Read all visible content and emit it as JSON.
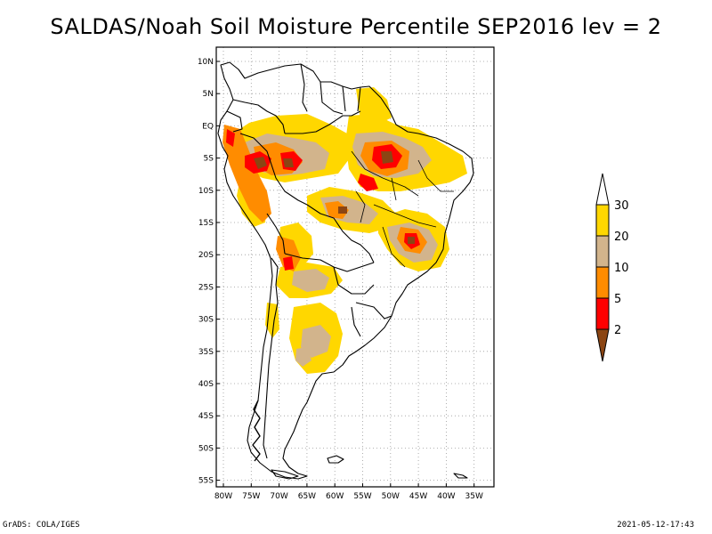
{
  "title": "SALDAS/Noah Soil Moisture Percentile SEP2016 lev = 2",
  "footer": {
    "left": "GrADS: COLA/IGES",
    "right": "2021-05-12-17:43"
  },
  "map": {
    "lat_labels": [
      "10N",
      "5N",
      "EQ",
      "5S",
      "10S",
      "15S",
      "20S",
      "25S",
      "30S",
      "35S",
      "40S",
      "45S",
      "50S",
      "55S"
    ],
    "lon_labels": [
      "80W",
      "75W",
      "70W",
      "65W",
      "60W",
      "55W",
      "50W",
      "45W",
      "40W",
      "35W"
    ],
    "grid": "dotted",
    "extent": {
      "lon": [
        -80,
        -34
      ],
      "lat": [
        -56,
        11
      ]
    }
  },
  "legend": {
    "placement": "right",
    "breaks": [
      "2",
      "5",
      "10",
      "20",
      "30"
    ],
    "colors": {
      "below_2": "#8b4513",
      "2_5": "#ff0000",
      "5_10": "#ff8c00",
      "10_20": "#d2b48c",
      "20_30": "#ffd700",
      "above_30": "#ffffff"
    }
  }
}
